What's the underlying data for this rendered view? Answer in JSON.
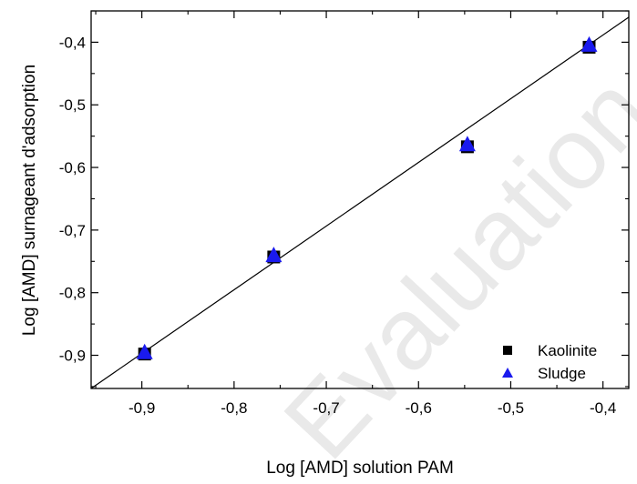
{
  "chart_data": {
    "type": "scatter",
    "xlabel": "Log [AMD] solution PAM",
    "ylabel": "Log [AMD] surnageant d'adsorption",
    "xlim": [
      -0.955,
      -0.372
    ],
    "ylim": [
      -0.953,
      -0.35
    ],
    "x_ticks": [
      -0.9,
      -0.8,
      -0.7,
      -0.6,
      -0.5,
      -0.4
    ],
    "x_tick_labels": [
      "-0,9",
      "-0,8",
      "-0,7",
      "-0,6",
      "-0,5",
      "-0,4"
    ],
    "y_ticks": [
      -0.9,
      -0.8,
      -0.7,
      -0.6,
      -0.5,
      -0.4
    ],
    "y_tick_labels": [
      "-0,9",
      "-0,8",
      "-0,7",
      "-0,6",
      "-0,5",
      "-0,4"
    ],
    "grid": false,
    "legend_position": "bottom-right",
    "series": [
      {
        "name": "Kaolinite",
        "marker": "square",
        "color": "#000000",
        "points": [
          {
            "x": -0.897,
            "y": -0.898
          },
          {
            "x": -0.757,
            "y": -0.743
          },
          {
            "x": -0.547,
            "y": -0.567
          },
          {
            "x": -0.415,
            "y": -0.408
          }
        ]
      },
      {
        "name": "Sludge",
        "marker": "triangle",
        "color": "#1a1aee",
        "points": [
          {
            "x": -0.897,
            "y": -0.896
          },
          {
            "x": -0.757,
            "y": -0.741
          },
          {
            "x": -0.547,
            "y": -0.564
          },
          {
            "x": -0.415,
            "y": -0.405
          }
        ]
      }
    ],
    "reference_line": {
      "x": [
        -0.955,
        -0.372
      ],
      "y": [
        -0.953,
        -0.36
      ]
    }
  },
  "watermark": {
    "text": "Evaluation"
  }
}
